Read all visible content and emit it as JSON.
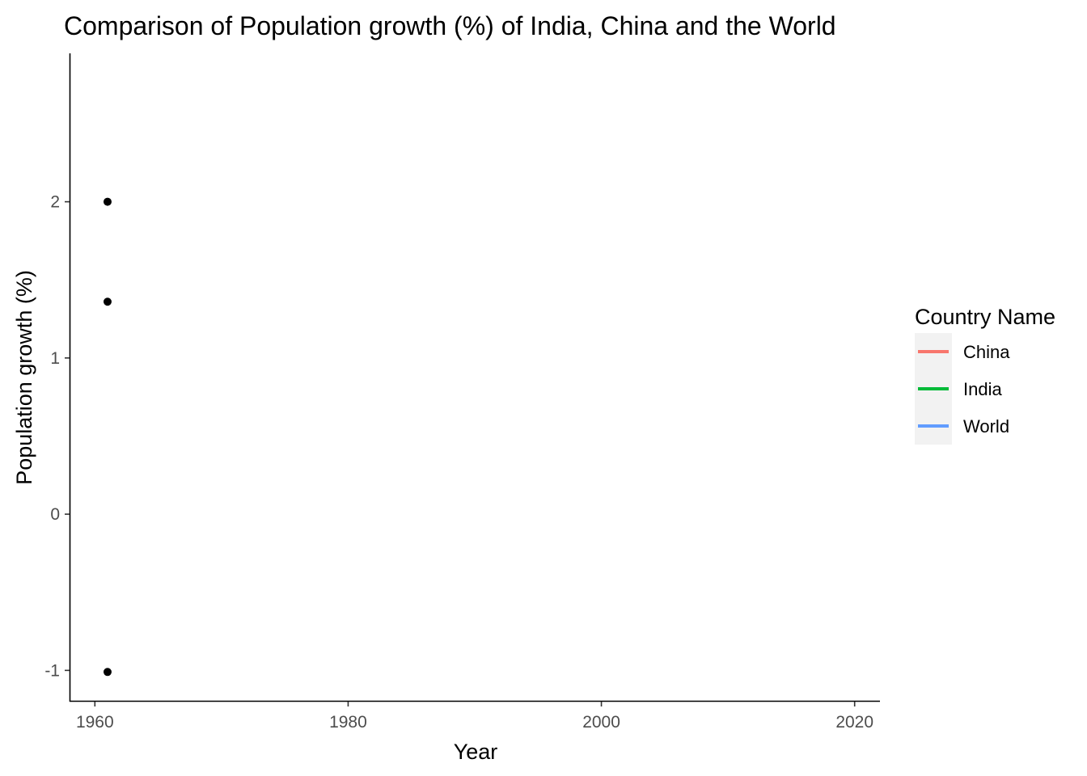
{
  "chart_data": {
    "type": "scatter",
    "title": "Comparison of Population growth (%) of India, China and the World",
    "xlabel": "Year",
    "ylabel": "Population growth (%)",
    "xlim": [
      1958,
      2022
    ],
    "ylim": [
      -1.2,
      2.95
    ],
    "x_ticks": [
      1960,
      1980,
      2000,
      2020
    ],
    "y_ticks": [
      -1,
      0,
      1,
      2
    ],
    "grid": false,
    "legend": {
      "title": "Country Name",
      "placement": "right",
      "entries": [
        {
          "name": "China",
          "color": "#F8766D"
        },
        {
          "name": "India",
          "color": "#00BA38"
        },
        {
          "name": "World",
          "color": "#619CFF"
        }
      ]
    },
    "points": [
      {
        "x": 1961,
        "y": 2.0
      },
      {
        "x": 1961,
        "y": 1.36
      },
      {
        "x": 1961,
        "y": -1.01
      }
    ],
    "point_color": "#000000"
  }
}
